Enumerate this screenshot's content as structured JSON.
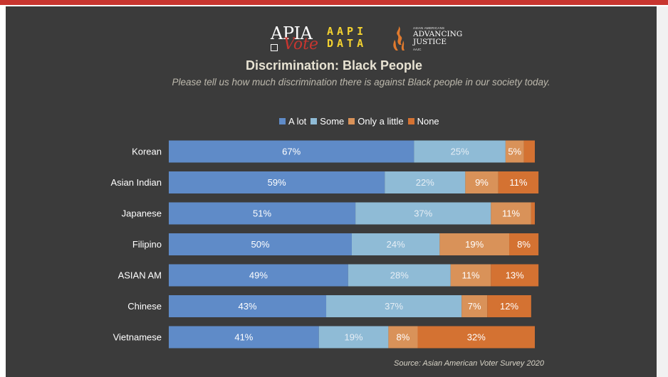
{
  "logos": {
    "apia_vote": {
      "line1": "APIA",
      "line2": "Vote"
    },
    "aapi_data": {
      "line1": "AAPI",
      "line2": "DATA"
    },
    "aaj": {
      "small": "ASIAN AMERICANS",
      "big1": "ADVANCING",
      "big2": "JUSTICE",
      "tiny": "AAJC"
    }
  },
  "colors": {
    "a_lot": "#5f8bc8",
    "some": "#8fbbd6",
    "only_a_little": "#d99259",
    "none": "#d47232"
  },
  "chart_data": {
    "type": "bar",
    "orientation": "horizontal-stacked",
    "title": "Discrimination: Black People",
    "subtitle": "Please tell us how much discrimination there is against Black people in our society today.",
    "legend": [
      "A lot",
      "Some",
      "Only a little",
      "None"
    ],
    "legend_position": "top-center",
    "categories": [
      "Korean",
      "Asian Indian",
      "Japanese",
      "Filipino",
      "ASIAN AM",
      "Chinese",
      "Vietnamese"
    ],
    "series": [
      {
        "name": "A lot",
        "values": [
          67,
          59,
          51,
          50,
          49,
          43,
          41
        ],
        "labels": [
          "67%",
          "59%",
          "51%",
          "50%",
          "49%",
          "43%",
          "41%"
        ]
      },
      {
        "name": "Some",
        "values": [
          25,
          22,
          37,
          24,
          28,
          37,
          19
        ],
        "labels": [
          "25%",
          "22%",
          "37%",
          "24%",
          "28%",
          "37%",
          "19%"
        ]
      },
      {
        "name": "Only a little",
        "values": [
          5,
          9,
          11,
          19,
          11,
          7,
          8
        ],
        "labels": [
          "5%",
          "9%",
          "11%",
          "19%",
          "11%",
          "7%",
          "8%"
        ]
      },
      {
        "name": "None",
        "values": [
          3,
          11,
          1,
          8,
          13,
          12,
          32
        ],
        "labels": [
          "",
          "11%",
          "",
          "8%",
          "13%",
          "12%",
          "32%"
        ]
      }
    ],
    "xlim": [
      0,
      100
    ],
    "source": "Source: Asian American Voter Survey 2020"
  }
}
